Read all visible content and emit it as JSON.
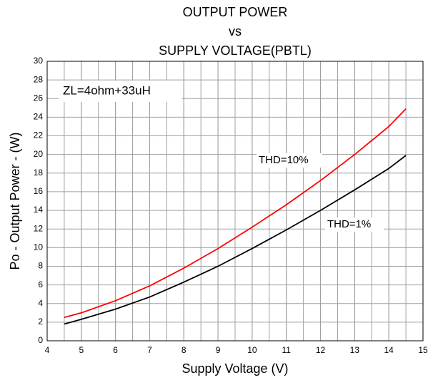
{
  "chart_data": {
    "type": "line",
    "title": [
      "OUTPUT POWER",
      "vs",
      "SUPPLY VOLTAGE(PBTL)"
    ],
    "xlabel": "Supply Voltage (V)",
    "ylabel": "Po - Output Power - (W)",
    "annotations": [
      "ZL=4ohm+33uH"
    ],
    "x": [
      4.5,
      5,
      6,
      7,
      8,
      9,
      10,
      11,
      12,
      13,
      14,
      14.5
    ],
    "series": [
      {
        "name": "THD=10%",
        "color": "#ff0000",
        "values": [
          2.5,
          3.0,
          4.3,
          5.9,
          7.8,
          9.9,
          12.2,
          14.6,
          17.2,
          20.0,
          23.0,
          24.9
        ]
      },
      {
        "name": "THD=1%",
        "color": "#000000",
        "values": [
          1.8,
          2.3,
          3.4,
          4.7,
          6.3,
          8.0,
          9.9,
          11.9,
          14.0,
          16.2,
          18.5,
          19.9
        ]
      }
    ],
    "xlim": [
      4,
      15
    ],
    "xticks": [
      4,
      5,
      6,
      7,
      8,
      9,
      10,
      11,
      12,
      13,
      14,
      15
    ],
    "ylim": [
      0,
      30
    ],
    "yticks": [
      0,
      2,
      4,
      6,
      8,
      10,
      12,
      14,
      16,
      18,
      20,
      22,
      24,
      26,
      28,
      30
    ],
    "x_grid_step": 0.5,
    "grid": true
  }
}
